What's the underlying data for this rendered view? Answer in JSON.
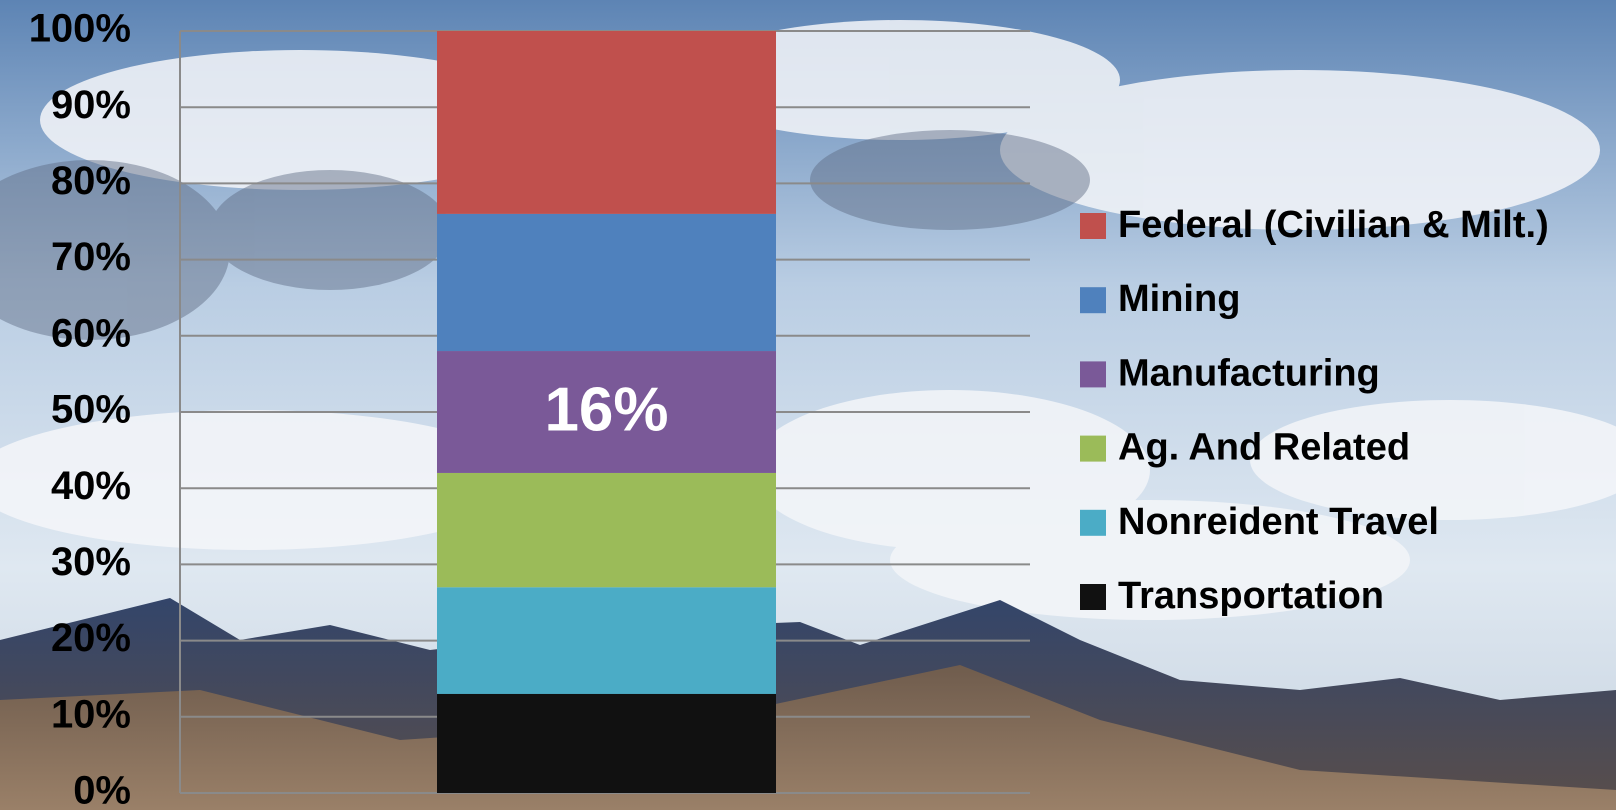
{
  "chart_data": {
    "type": "stacked-bar",
    "categories": [
      null
    ],
    "series": [
      {
        "name": "Federal (Civilian & Milt.)",
        "color": "#c0504d",
        "values": [
          24
        ]
      },
      {
        "name": "Mining",
        "color": "#4f81bd",
        "values": [
          18
        ]
      },
      {
        "name": "Manufacturing",
        "color": "#7a5998",
        "values": [
          16
        ],
        "value_labels": [
          "16%"
        ]
      },
      {
        "name": "Ag. And Related",
        "color": "#9bbb59",
        "values": [
          15
        ]
      },
      {
        "name": "Nonreident Travel",
        "color": "#4bacc6",
        "values": [
          14
        ]
      },
      {
        "name": "Transportation",
        "color": "#111111",
        "values": [
          13
        ]
      }
    ],
    "ylim": [
      0,
      100
    ],
    "yticks": [
      {
        "value": 0,
        "label": "0%"
      },
      {
        "value": 10,
        "label": "10%"
      },
      {
        "value": 20,
        "label": "20%"
      },
      {
        "value": 30,
        "label": "30%"
      },
      {
        "value": 40,
        "label": "40%"
      },
      {
        "value": 50,
        "label": "50%"
      },
      {
        "value": 60,
        "label": "60%"
      },
      {
        "value": 70,
        "label": "70%"
      },
      {
        "value": 80,
        "label": "80%"
      },
      {
        "value": 90,
        "label": "90%"
      },
      {
        "value": 100,
        "label": "100%"
      }
    ],
    "grid": true,
    "legend": "right"
  }
}
